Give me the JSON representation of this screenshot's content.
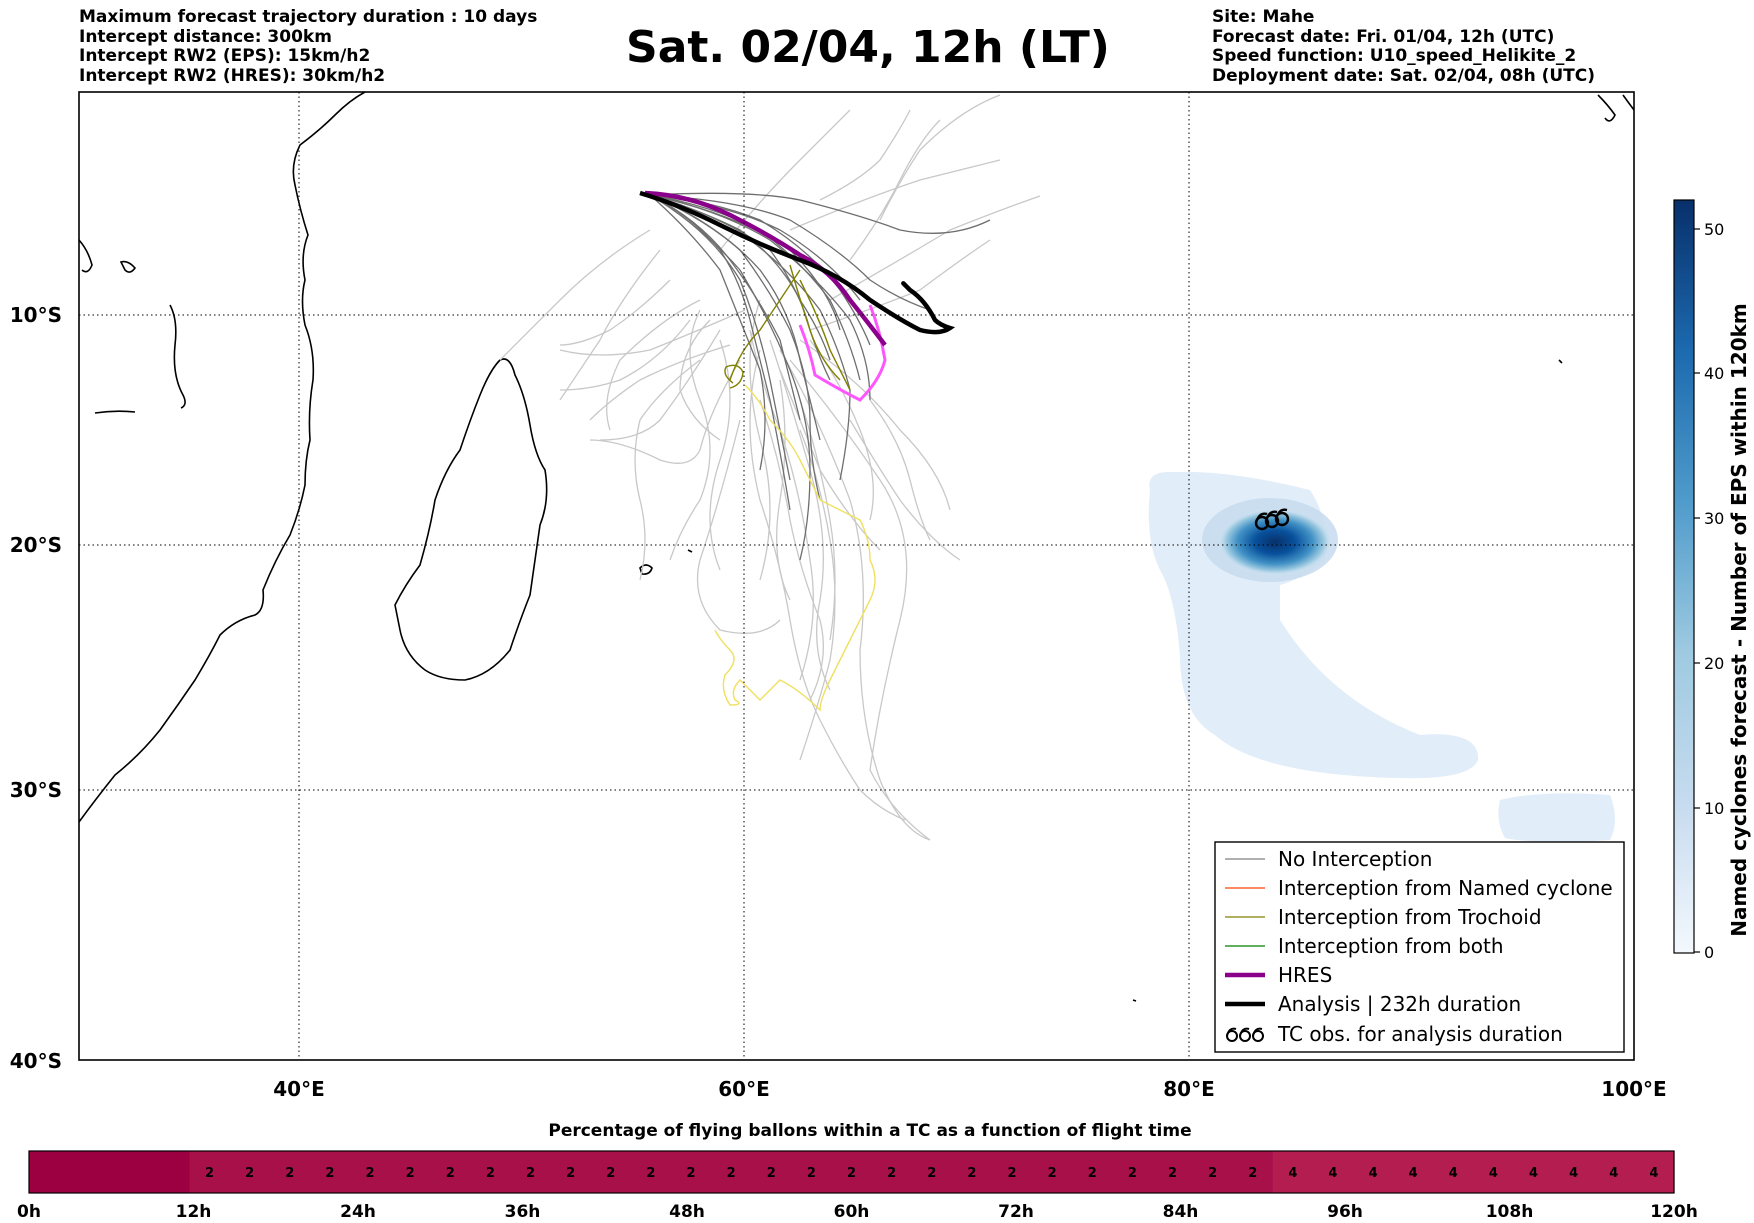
{
  "header": {
    "left": [
      "Maximum forecast trajectory duration : 10 days",
      "Intercept distance: 300km",
      "Intercept RW2 (EPS):  15km/h2",
      "Intercept RW2 (HRES): 30km/h2"
    ],
    "title": "Sat. 02/04, 12h (LT)",
    "right": [
      "Site: Mahe",
      "Forecast date: Fri. 01/04, 12h (UTC)",
      "Speed function: U10_speed_Helikite_2",
      "Deployment date: Sat. 02/04, 08h (UTC)"
    ]
  },
  "map": {
    "lat_labels": [
      "10°S",
      "20°S",
      "30°S",
      "40°S"
    ],
    "lon_labels": [
      "40°E",
      "60°E",
      "80°E",
      "100°E"
    ],
    "lon_range": [
      30,
      100
    ],
    "lat_range": [
      -40,
      -0.5
    ],
    "gridlines": true,
    "colors": {
      "ocean": "#ffffff",
      "coast": "#000000",
      "no_interception": "#808080",
      "named_cyclone": "#ff4500",
      "trochoid": "#808000",
      "both": "#008000",
      "hres": "#8b008b",
      "analysis": "#000000",
      "light_tracks": "#c8c8c8",
      "yellow_track": "#f0e060",
      "pink_track": "#ff55ff"
    }
  },
  "legend": {
    "position": "lower-right",
    "items": [
      {
        "label": "No Interception",
        "color": "#808080",
        "style": "thin"
      },
      {
        "label": "Interception from Named cyclone",
        "color": "#ff4500",
        "style": "thin"
      },
      {
        "label": "Interception from Trochoid",
        "color": "#808000",
        "style": "thin"
      },
      {
        "label": "Interception from both",
        "color": "#008000",
        "style": "thin"
      },
      {
        "label": "HRES",
        "color": "#8b008b",
        "style": "thick"
      },
      {
        "label": "Analysis | 232h duration",
        "color": "#000000",
        "style": "thick"
      },
      {
        "label": "TC obs. for analysis duration",
        "color": "#000000",
        "style": "symbol"
      }
    ]
  },
  "colorbar": {
    "title": "Named cyclones forecast - Number of EPS within 120km",
    "ticks": [
      "0",
      "10",
      "20",
      "30",
      "40",
      "50"
    ],
    "range": [
      0,
      52
    ],
    "colors": [
      "#e6eff9",
      "#c6dbef",
      "#9ecae1",
      "#6baed6",
      "#3182bd",
      "#08519c",
      "#08306b"
    ]
  },
  "strip": {
    "title": "Percentage of flying ballons within a TC as a function of flight time",
    "time_labels": [
      "0h",
      "12h",
      "24h",
      "36h",
      "48h",
      "60h",
      "72h",
      "84h",
      "96h",
      "108h",
      "120h"
    ],
    "values": [
      "",
      "",
      "",
      "",
      "2",
      "2",
      "2",
      "2",
      "2",
      "2",
      "2",
      "2",
      "2",
      "2",
      "2",
      "2",
      "2",
      "2",
      "2",
      "2",
      "2",
      "2",
      "2",
      "2",
      "2",
      "2",
      "2",
      "2",
      "2",
      "2",
      "2",
      "4",
      "4",
      "4",
      "4",
      "4",
      "4",
      "4",
      "4",
      "4",
      "4"
    ],
    "colors": {
      "low": "#9c0040",
      "mid": "#a8104a",
      "high": "#b31d4f"
    }
  }
}
